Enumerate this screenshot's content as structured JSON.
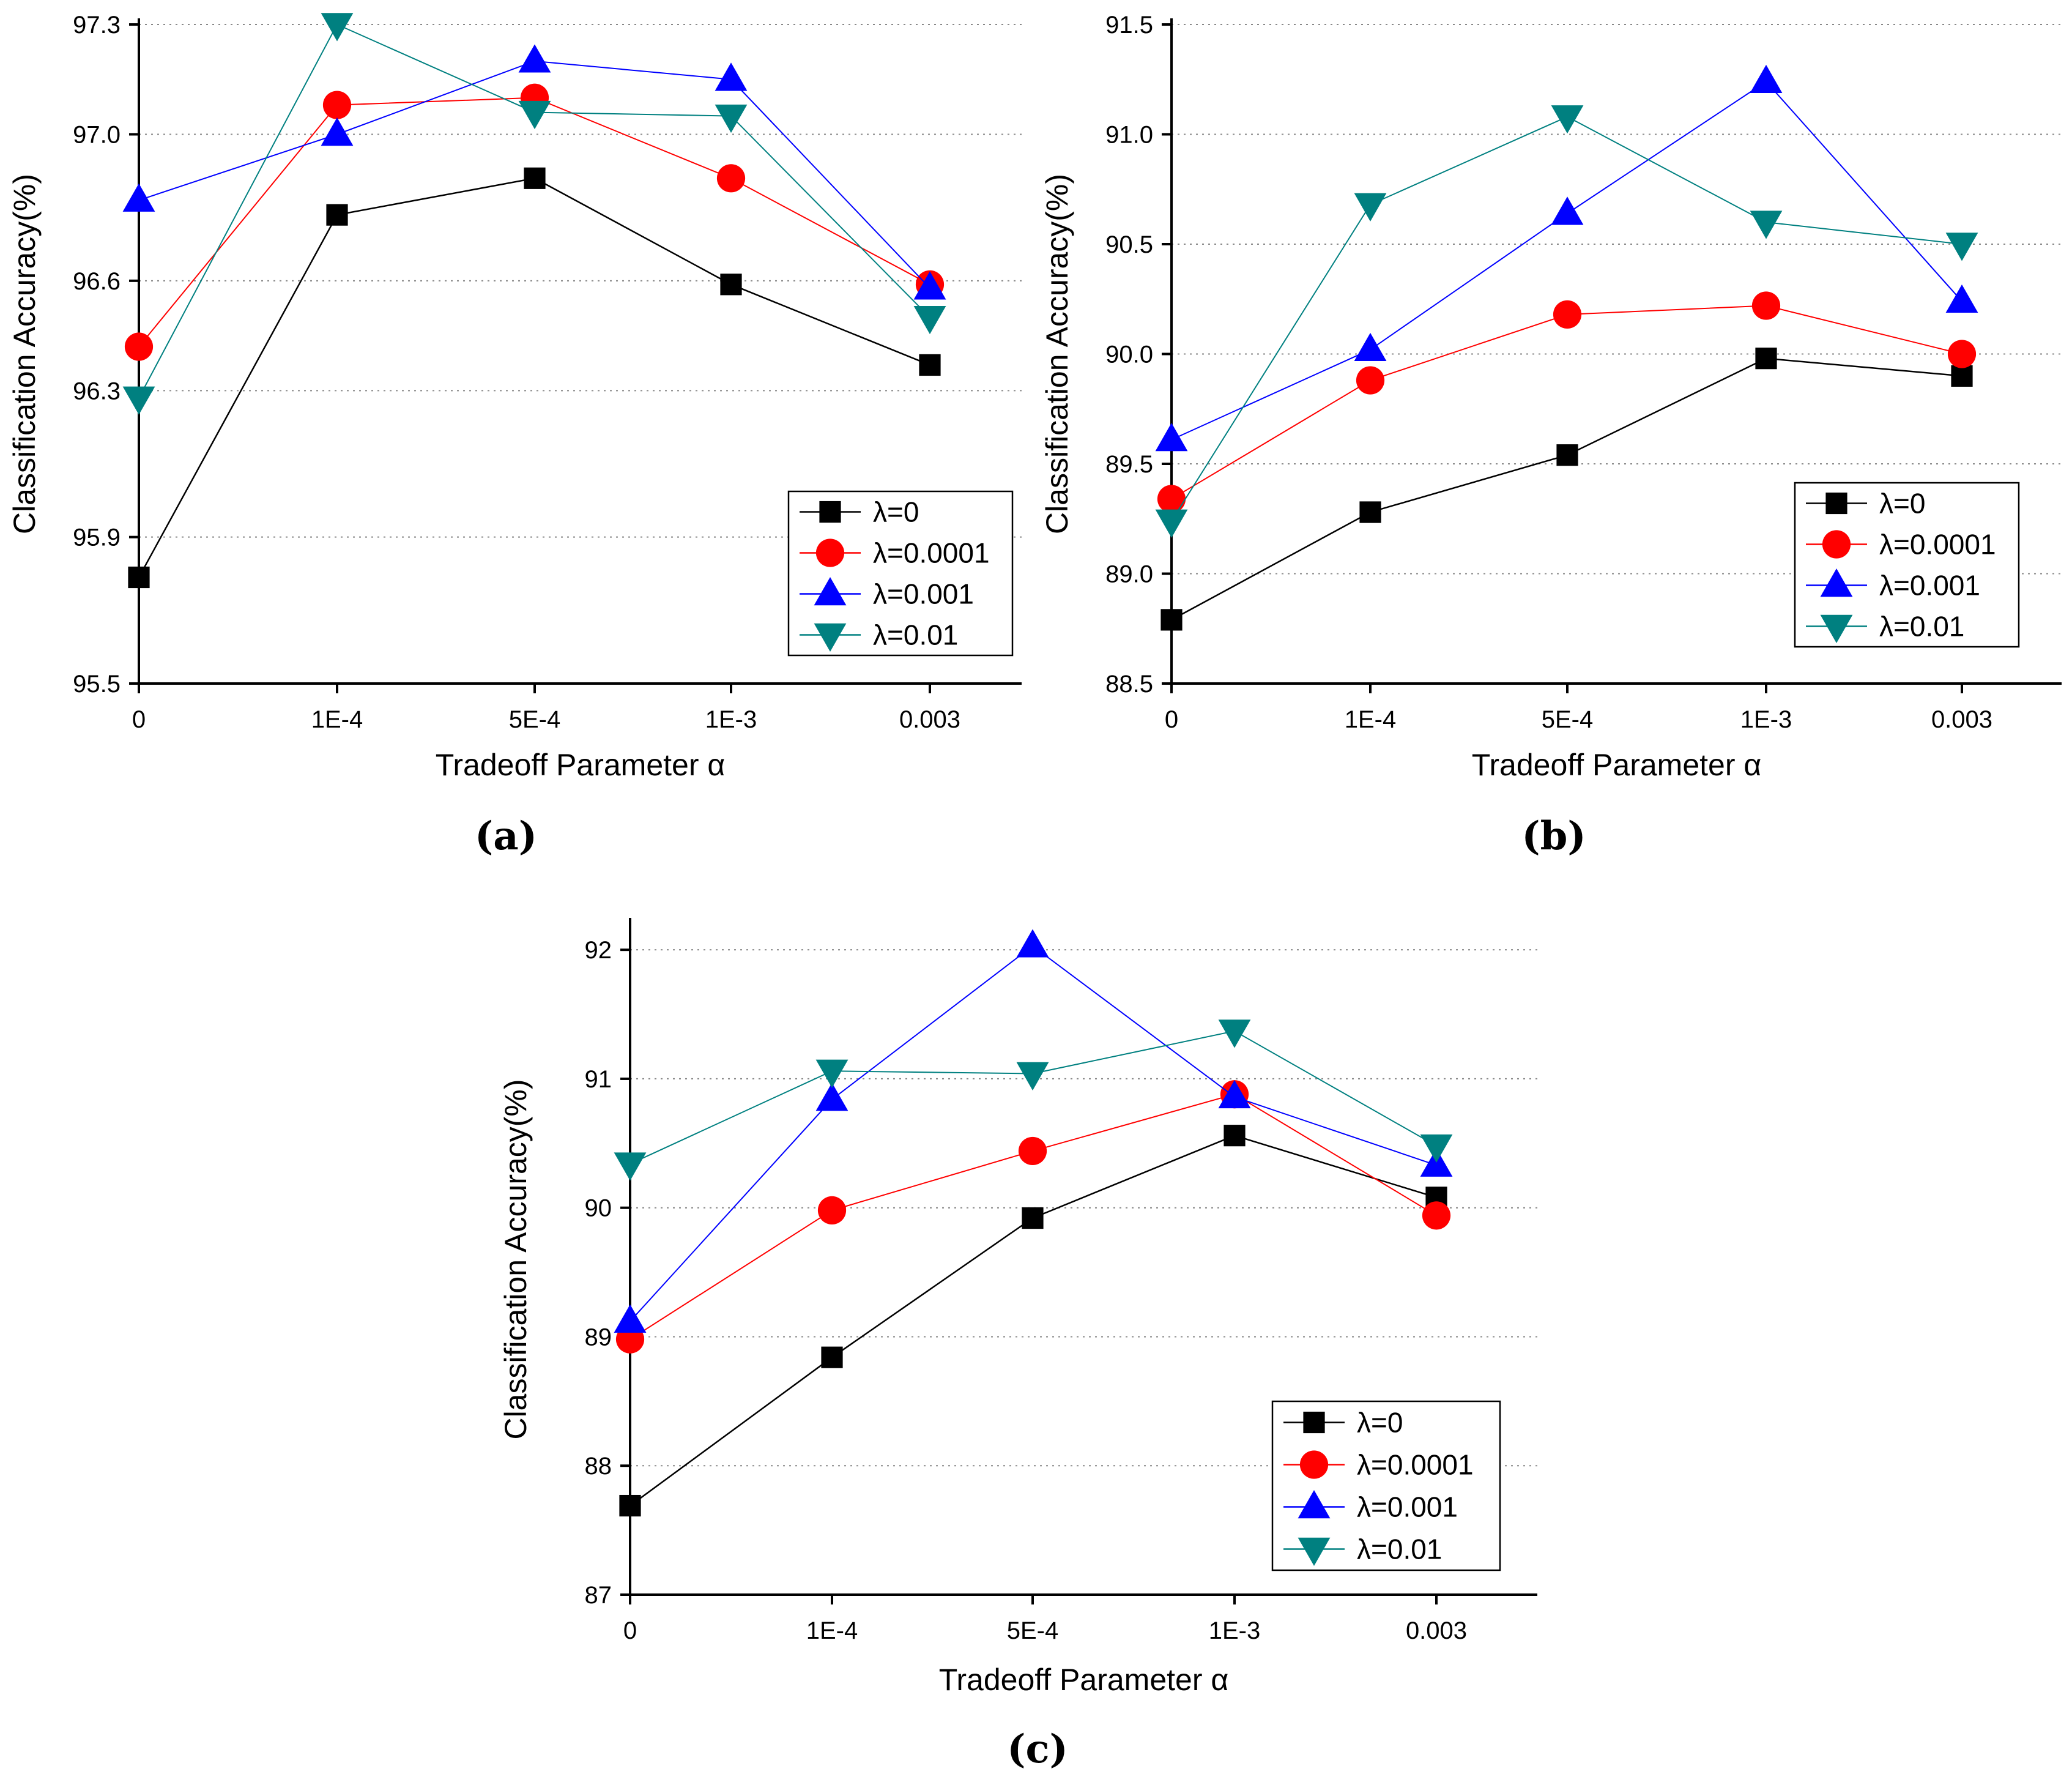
{
  "figure": {
    "colors": {
      "lambda_0": "#000000",
      "lambda_0.0001": "#ff0000",
      "lambda_0.001": "#0000ff",
      "lambda_0.01": "#008080",
      "axis": "#000000",
      "grid": "#888888"
    }
  },
  "chart_data": [
    {
      "id": "a",
      "panel_label": "(a)",
      "type": "line",
      "xlabel": "Tradeoff Parameter α",
      "ylabel": "Classification Accuracy(%)",
      "categories": [
        "0",
        "1E-4",
        "5E-4",
        "1E-3",
        "0.003"
      ],
      "ylim": [
        95.5,
        97.3
      ],
      "yticks": [
        95.5,
        95.9,
        96.3,
        96.6,
        97.0,
        97.3
      ],
      "ytick_labels": [
        "95.5",
        "95.9",
        "96.3",
        "96.6",
        "97.0",
        "97.3"
      ],
      "grid": true,
      "legend_position": "lower-right",
      "series": [
        {
          "name": "λ=0",
          "marker": "square",
          "values": [
            95.79,
            96.78,
            96.88,
            96.59,
            96.37
          ]
        },
        {
          "name": "λ=0.0001",
          "marker": "circle",
          "values": [
            96.42,
            97.08,
            97.1,
            96.88,
            96.59
          ]
        },
        {
          "name": "λ=0.001",
          "marker": "triangle-up",
          "values": [
            96.82,
            97.0,
            97.2,
            97.15,
            96.58
          ]
        },
        {
          "name": "λ=0.01",
          "marker": "triangle-down",
          "values": [
            96.28,
            97.3,
            97.06,
            97.05,
            96.5
          ]
        }
      ]
    },
    {
      "id": "b",
      "panel_label": "(b)",
      "type": "line",
      "xlabel": "Tradeoff Parameter α",
      "ylabel": "Classification Accuracy(%)",
      "categories": [
        "0",
        "1E-4",
        "5E-4",
        "1E-3",
        "0.003"
      ],
      "ylim": [
        88.5,
        91.5
      ],
      "yticks": [
        88.5,
        89.0,
        89.5,
        90.0,
        90.5,
        91.0,
        91.5
      ],
      "ytick_labels": [
        "88.5",
        "89.0",
        "89.5",
        "90.0",
        "90.5",
        "91.0",
        "91.5"
      ],
      "grid": true,
      "legend_position": "lower-right",
      "series": [
        {
          "name": "λ=0",
          "marker": "square",
          "values": [
            88.79,
            89.28,
            89.54,
            89.98,
            89.9
          ]
        },
        {
          "name": "λ=0.0001",
          "marker": "circle",
          "values": [
            89.34,
            89.88,
            90.18,
            90.22,
            90.0
          ]
        },
        {
          "name": "λ=0.001",
          "marker": "triangle-up",
          "values": [
            89.61,
            90.02,
            90.64,
            91.24,
            90.24
          ]
        },
        {
          "name": "λ=0.01",
          "marker": "triangle-down",
          "values": [
            89.24,
            90.68,
            91.08,
            90.6,
            90.5
          ]
        }
      ]
    },
    {
      "id": "c",
      "panel_label": "(c)",
      "type": "line",
      "xlabel": "Tradeoff Parameter α",
      "ylabel": "Classification Accuracy(%)",
      "categories": [
        "0",
        "1E-4",
        "5E-4",
        "1E-3",
        "0.003"
      ],
      "ylim": [
        87,
        92.2
      ],
      "yticks": [
        87,
        88,
        89,
        90,
        91,
        92
      ],
      "ytick_labels": [
        "87",
        "88",
        "89",
        "90",
        "91",
        "92"
      ],
      "grid": true,
      "legend_position": "lower-right",
      "series": [
        {
          "name": "λ=0",
          "marker": "square",
          "values": [
            87.69,
            88.84,
            89.92,
            90.56,
            90.08
          ]
        },
        {
          "name": "λ=0.0001",
          "marker": "circle",
          "values": [
            88.98,
            89.98,
            90.44,
            90.88,
            89.94
          ]
        },
        {
          "name": "λ=0.001",
          "marker": "triangle-up",
          "values": [
            89.12,
            90.84,
            92.03,
            90.86,
            90.33
          ]
        },
        {
          "name": "λ=0.01",
          "marker": "triangle-down",
          "values": [
            90.34,
            91.06,
            91.04,
            91.37,
            90.48
          ]
        }
      ]
    }
  ]
}
